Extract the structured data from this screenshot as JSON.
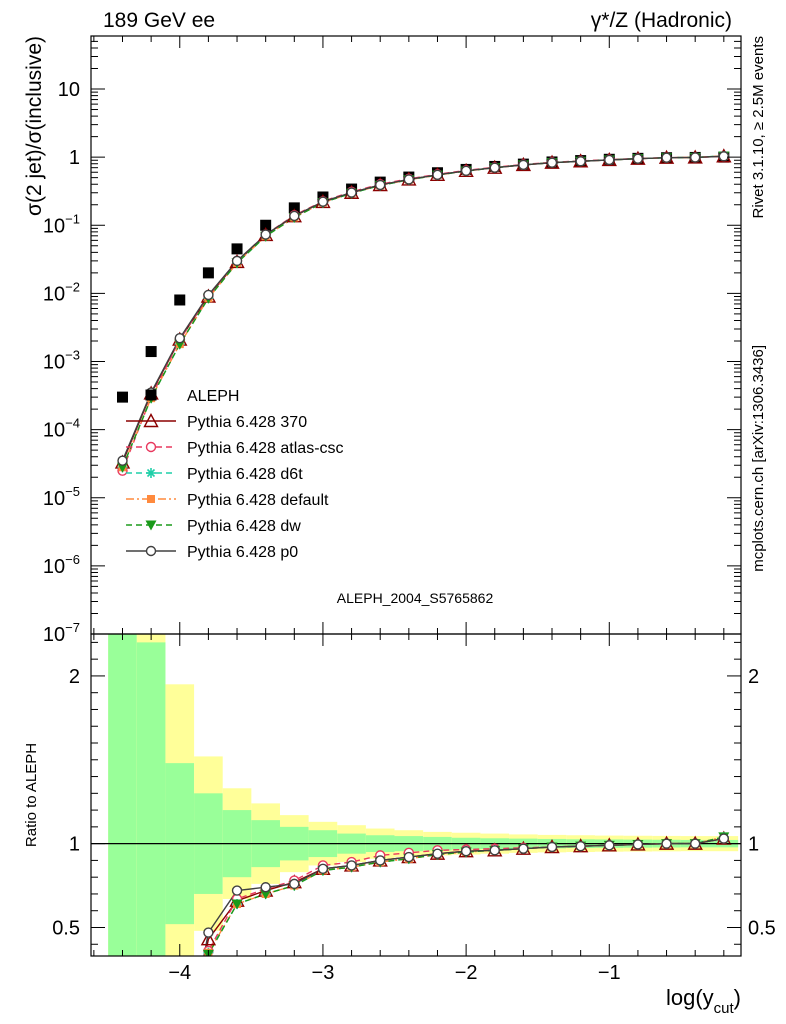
{
  "header": {
    "left_label": "189 GeV ee",
    "right_label": "γ*/Z (Hadronic)"
  },
  "side_labels": {
    "rivet": "Rivet 3.1.10, ≥ 2.5M events",
    "mcplots": "mcplots.cern.ch [arXiv:1306.3436]"
  },
  "watermark": "ALEPH_2004_S5765862",
  "colors": {
    "data": "#000000",
    "p370": "#8b0000",
    "atlas": "#e8385e",
    "d6t": "#1fcfa8",
    "default": "#ff8a3d",
    "dw": "#1a9a1a",
    "p0": "#404040",
    "band_inner": "#99ff99",
    "band_outer": "#ffff99"
  },
  "chart_data": {
    "type": "line",
    "x": [
      -4.4,
      -4.2,
      -4.0,
      -3.8,
      -3.6,
      -3.4,
      -3.2,
      -3.0,
      -2.8,
      -2.6,
      -2.4,
      -2.2,
      -2.0,
      -1.8,
      -1.6,
      -1.4,
      -1.2,
      -1.0,
      -0.8,
      -0.6,
      -0.4,
      -0.2
    ],
    "xlabel": "log(y_cut)",
    "ylabel": "σ(2 jet)/σ(inclusive)",
    "ratio_ylabel": "Ratio to ALEPH",
    "xlim": [
      -4.62,
      -0.08
    ],
    "ylim_main": [
      1e-07,
      60
    ],
    "ylim_ratio": [
      0.33,
      2.25
    ],
    "yscale_main": "log",
    "x_ticks": [
      "−4",
      "−3",
      "−2",
      "−1"
    ],
    "y_ticks_main": [
      {
        "b": "10",
        "e": "−7"
      },
      {
        "b": "10",
        "e": "−6"
      },
      {
        "b": "10",
        "e": "−5"
      },
      {
        "b": "10",
        "e": "−4"
      },
      {
        "b": "10",
        "e": "−3"
      },
      {
        "b": "10",
        "e": "−2"
      },
      {
        "b": "10",
        "e": "−1"
      },
      {
        "b": "1",
        "e": ""
      },
      {
        "b": "10",
        "e": ""
      }
    ],
    "y_ticks_ratio": [
      "0.5",
      "1",
      "2"
    ],
    "legend_position": "center-left",
    "data": {
      "name": "ALEPH",
      "x": [
        -4.4,
        -4.2,
        -4.0,
        -3.8,
        -3.6,
        -3.4,
        -3.2,
        -3.0,
        -2.8,
        -2.6,
        -2.4,
        -2.2,
        -2.0,
        -1.8,
        -1.6,
        -1.4,
        -1.2,
        -1.0,
        -0.8,
        -0.6,
        -0.4,
        -0.2
      ],
      "y": [
        0.0003,
        0.0014,
        0.008,
        0.02,
        0.045,
        0.1,
        0.18,
        0.26,
        0.34,
        0.43,
        0.51,
        0.59,
        0.66,
        0.73,
        0.79,
        0.85,
        0.89,
        0.93,
        0.96,
        0.98,
        0.99,
        1.0
      ],
      "band_inner": [
        2.5,
        2.2,
        1.48,
        1.3,
        1.2,
        1.14,
        1.1,
        1.08,
        1.06,
        1.05,
        1.045,
        1.04,
        1.035,
        1.032,
        1.03,
        1.028,
        1.026,
        1.025,
        1.024,
        1.023,
        1.022,
        1.022
      ],
      "band_outer": [
        2.5,
        2.5,
        1.95,
        1.52,
        1.33,
        1.24,
        1.17,
        1.13,
        1.11,
        1.09,
        1.08,
        1.07,
        1.065,
        1.06,
        1.055,
        1.052,
        1.05,
        1.048,
        1.047,
        1.046,
        1.045,
        1.045
      ]
    },
    "series": [
      {
        "name": "Pythia 6.428 370",
        "key": "p370",
        "marker": "triangle-open",
        "dash": "",
        "main": [
          3.3e-05,
          0.00034,
          0.0021,
          0.009,
          0.029,
          0.072,
          0.136,
          0.22,
          0.3,
          0.39,
          0.47,
          0.55,
          0.63,
          0.7,
          0.77,
          0.83,
          0.87,
          0.91,
          0.95,
          0.98,
          0.99,
          1.03
        ],
        "ratio": [
          null,
          null,
          null,
          0.43,
          0.66,
          0.72,
          0.77,
          0.85,
          0.87,
          0.9,
          0.92,
          0.94,
          0.955,
          0.96,
          0.97,
          0.98,
          0.985,
          0.99,
          0.995,
          1.0,
          1.0,
          1.03
        ]
      },
      {
        "name": "Pythia 6.428 atlas-csc",
        "key": "atlas",
        "marker": "circle-open",
        "dash": "6,4",
        "main": [
          2.5e-05,
          0.0003,
          0.0021,
          0.0092,
          0.03,
          0.073,
          0.14,
          0.225,
          0.31,
          0.4,
          0.48,
          0.56,
          0.64,
          0.71,
          0.78,
          0.84,
          0.88,
          0.92,
          0.955,
          0.98,
          0.99,
          1.03
        ],
        "ratio": [
          null,
          null,
          null,
          0.36,
          0.67,
          0.73,
          0.78,
          0.87,
          0.89,
          0.93,
          0.945,
          0.96,
          0.965,
          0.97,
          0.975,
          0.98,
          0.985,
          0.99,
          0.995,
          1.0,
          1.0,
          1.03
        ]
      },
      {
        "name": "Pythia 6.428 d6t",
        "key": "d6t",
        "marker": "star",
        "dash": "6,4",
        "main": [
          2.8e-05,
          0.00029,
          0.0018,
          0.0085,
          0.028,
          0.069,
          0.13,
          0.215,
          0.295,
          0.385,
          0.465,
          0.545,
          0.625,
          0.7,
          0.77,
          0.83,
          0.87,
          0.91,
          0.95,
          0.98,
          0.99,
          1.04
        ],
        "ratio": [
          null,
          null,
          null,
          0.35,
          0.64,
          0.7,
          0.75,
          0.84,
          0.86,
          0.89,
          0.91,
          0.935,
          0.95,
          0.96,
          0.97,
          0.98,
          0.985,
          0.99,
          0.995,
          1.0,
          1.0,
          1.04
        ]
      },
      {
        "name": "Pythia 6.428 default",
        "key": "default",
        "marker": "square",
        "dash": "8,3,2,3",
        "main": [
          2.8e-05,
          0.00029,
          0.0018,
          0.0085,
          0.028,
          0.069,
          0.13,
          0.215,
          0.295,
          0.385,
          0.465,
          0.545,
          0.625,
          0.7,
          0.77,
          0.83,
          0.87,
          0.91,
          0.95,
          0.98,
          0.99,
          1.04
        ],
        "ratio": [
          null,
          null,
          null,
          0.35,
          0.64,
          0.7,
          0.75,
          0.84,
          0.86,
          0.89,
          0.91,
          0.935,
          0.95,
          0.96,
          0.97,
          0.98,
          0.985,
          0.99,
          0.995,
          1.0,
          1.0,
          1.04
        ]
      },
      {
        "name": "Pythia 6.428 dw",
        "key": "dw",
        "marker": "triangle-down",
        "dash": "6,4",
        "main": [
          2.8e-05,
          0.00029,
          0.0018,
          0.0085,
          0.028,
          0.069,
          0.13,
          0.215,
          0.295,
          0.385,
          0.465,
          0.545,
          0.625,
          0.7,
          0.77,
          0.83,
          0.87,
          0.91,
          0.95,
          0.98,
          0.99,
          1.04
        ],
        "ratio": [
          null,
          null,
          null,
          0.34,
          0.64,
          0.7,
          0.75,
          0.84,
          0.86,
          0.89,
          0.91,
          0.935,
          0.95,
          0.96,
          0.97,
          0.98,
          0.985,
          0.99,
          0.995,
          1.0,
          1.0,
          1.04
        ]
      },
      {
        "name": "Pythia 6.428 p0",
        "key": "p0",
        "marker": "circle-open",
        "dash": "",
        "main": [
          3.5e-05,
          0.00035,
          0.0022,
          0.0095,
          0.03,
          0.073,
          0.137,
          0.222,
          0.302,
          0.39,
          0.47,
          0.55,
          0.63,
          0.7,
          0.77,
          0.83,
          0.87,
          0.91,
          0.95,
          0.98,
          0.99,
          1.03
        ],
        "ratio": [
          null,
          null,
          null,
          0.47,
          0.72,
          0.74,
          0.76,
          0.85,
          0.87,
          0.9,
          0.92,
          0.94,
          0.955,
          0.96,
          0.97,
          0.98,
          0.985,
          0.99,
          0.995,
          1.0,
          1.0,
          1.03
        ]
      }
    ]
  }
}
